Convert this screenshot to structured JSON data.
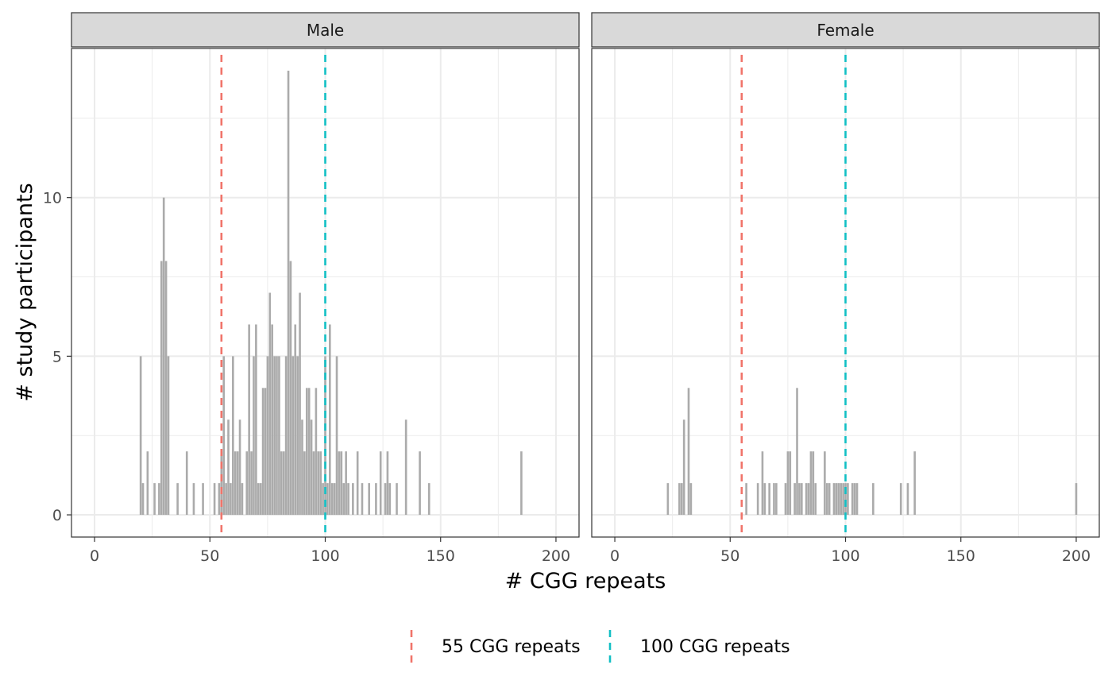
{
  "chart_data": {
    "type": "bar",
    "xlabel": "# CGG repeats",
    "ylabel": "# study participants",
    "xlim": [
      -10,
      210
    ],
    "ylim": [
      -0.7,
      14.7
    ],
    "xticks": [
      0,
      50,
      100,
      150,
      200
    ],
    "yticks": [
      0,
      5,
      10
    ],
    "grid": true,
    "bar_color": "#ababab",
    "reference_lines": [
      {
        "label": "55 CGG repeats",
        "x": 55,
        "color": "#f0746a"
      },
      {
        "label": "100 CGG repeats",
        "x": 100,
        "color": "#12bfc4"
      }
    ],
    "legend_position": "bottom",
    "panels": [
      {
        "name": "Male",
        "points": [
          [
            20,
            5
          ],
          [
            21,
            1
          ],
          [
            23,
            2
          ],
          [
            26,
            1
          ],
          [
            28,
            1
          ],
          [
            29,
            8
          ],
          [
            30,
            10
          ],
          [
            31,
            8
          ],
          [
            32,
            5
          ],
          [
            36,
            1
          ],
          [
            40,
            2
          ],
          [
            43,
            1
          ],
          [
            47,
            1
          ],
          [
            52,
            1
          ],
          [
            54,
            1
          ],
          [
            55,
            2
          ],
          [
            56,
            5
          ],
          [
            57,
            1
          ],
          [
            58,
            3
          ],
          [
            59,
            1
          ],
          [
            60,
            5
          ],
          [
            61,
            2
          ],
          [
            62,
            2
          ],
          [
            63,
            3
          ],
          [
            64,
            1
          ],
          [
            66,
            2
          ],
          [
            67,
            6
          ],
          [
            68,
            2
          ],
          [
            69,
            5
          ],
          [
            70,
            6
          ],
          [
            71,
            1
          ],
          [
            72,
            1
          ],
          [
            73,
            4
          ],
          [
            74,
            4
          ],
          [
            75,
            5
          ],
          [
            76,
            7
          ],
          [
            77,
            6
          ],
          [
            78,
            5
          ],
          [
            79,
            5
          ],
          [
            80,
            5
          ],
          [
            81,
            2
          ],
          [
            82,
            2
          ],
          [
            83,
            5
          ],
          [
            84,
            14
          ],
          [
            85,
            8
          ],
          [
            86,
            5
          ],
          [
            87,
            6
          ],
          [
            88,
            5
          ],
          [
            89,
            7
          ],
          [
            90,
            3
          ],
          [
            91,
            2
          ],
          [
            92,
            4
          ],
          [
            93,
            4
          ],
          [
            94,
            3
          ],
          [
            95,
            2
          ],
          [
            96,
            4
          ],
          [
            97,
            2
          ],
          [
            98,
            2
          ],
          [
            99,
            1
          ],
          [
            100,
            5
          ],
          [
            101,
            1
          ],
          [
            102,
            6
          ],
          [
            103,
            1
          ],
          [
            104,
            1
          ],
          [
            105,
            5
          ],
          [
            106,
            2
          ],
          [
            107,
            2
          ],
          [
            108,
            1
          ],
          [
            109,
            2
          ],
          [
            110,
            1
          ],
          [
            112,
            1
          ],
          [
            114,
            2
          ],
          [
            116,
            1
          ],
          [
            119,
            1
          ],
          [
            122,
            1
          ],
          [
            124,
            2
          ],
          [
            126,
            1
          ],
          [
            127,
            2
          ],
          [
            128,
            1
          ],
          [
            131,
            1
          ],
          [
            135,
            3
          ],
          [
            141,
            2
          ],
          [
            145,
            1
          ],
          [
            185,
            2
          ]
        ]
      },
      {
        "name": "Female",
        "points": [
          [
            23,
            1
          ],
          [
            28,
            1
          ],
          [
            29,
            1
          ],
          [
            30,
            3
          ],
          [
            32,
            4
          ],
          [
            33,
            1
          ],
          [
            57,
            1
          ],
          [
            62,
            1
          ],
          [
            64,
            2
          ],
          [
            65,
            1
          ],
          [
            67,
            1
          ],
          [
            69,
            1
          ],
          [
            70,
            1
          ],
          [
            74,
            1
          ],
          [
            75,
            2
          ],
          [
            76,
            2
          ],
          [
            78,
            1
          ],
          [
            79,
            4
          ],
          [
            80,
            1
          ],
          [
            81,
            1
          ],
          [
            83,
            1
          ],
          [
            84,
            1
          ],
          [
            85,
            2
          ],
          [
            86,
            2
          ],
          [
            87,
            1
          ],
          [
            91,
            2
          ],
          [
            92,
            1
          ],
          [
            93,
            1
          ],
          [
            95,
            1
          ],
          [
            96,
            1
          ],
          [
            97,
            1
          ],
          [
            98,
            1
          ],
          [
            99,
            1
          ],
          [
            100,
            1
          ],
          [
            101,
            1
          ],
          [
            103,
            1
          ],
          [
            104,
            1
          ],
          [
            105,
            1
          ],
          [
            112,
            1
          ],
          [
            124,
            1
          ],
          [
            127,
            1
          ],
          [
            130,
            2
          ],
          [
            200,
            1
          ]
        ]
      }
    ]
  }
}
